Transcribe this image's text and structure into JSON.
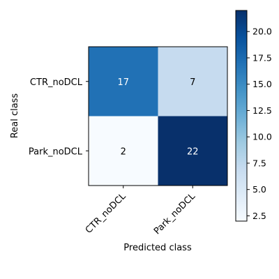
{
  "chart_data": {
    "type": "heatmap",
    "title": "",
    "xlabel": "Predicted class",
    "ylabel": "Real class",
    "x_categories": [
      "CTR_noDCL",
      "Park_noDCL"
    ],
    "y_categories": [
      "CTR_noDCL",
      "Park_noDCL"
    ],
    "values": [
      [
        17,
        7
      ],
      [
        2,
        22
      ]
    ],
    "colormap": "Blues",
    "colorbar": {
      "min": 2,
      "max": 22,
      "ticks": [
        2.5,
        5.0,
        7.5,
        10.0,
        12.5,
        15.0,
        17.5,
        20.0
      ],
      "tick_labels": [
        "2.5",
        "5.0",
        "7.5",
        "10.0",
        "12.5",
        "15.0",
        "17.5",
        "20.0"
      ]
    },
    "grid": false,
    "legend": "none"
  }
}
